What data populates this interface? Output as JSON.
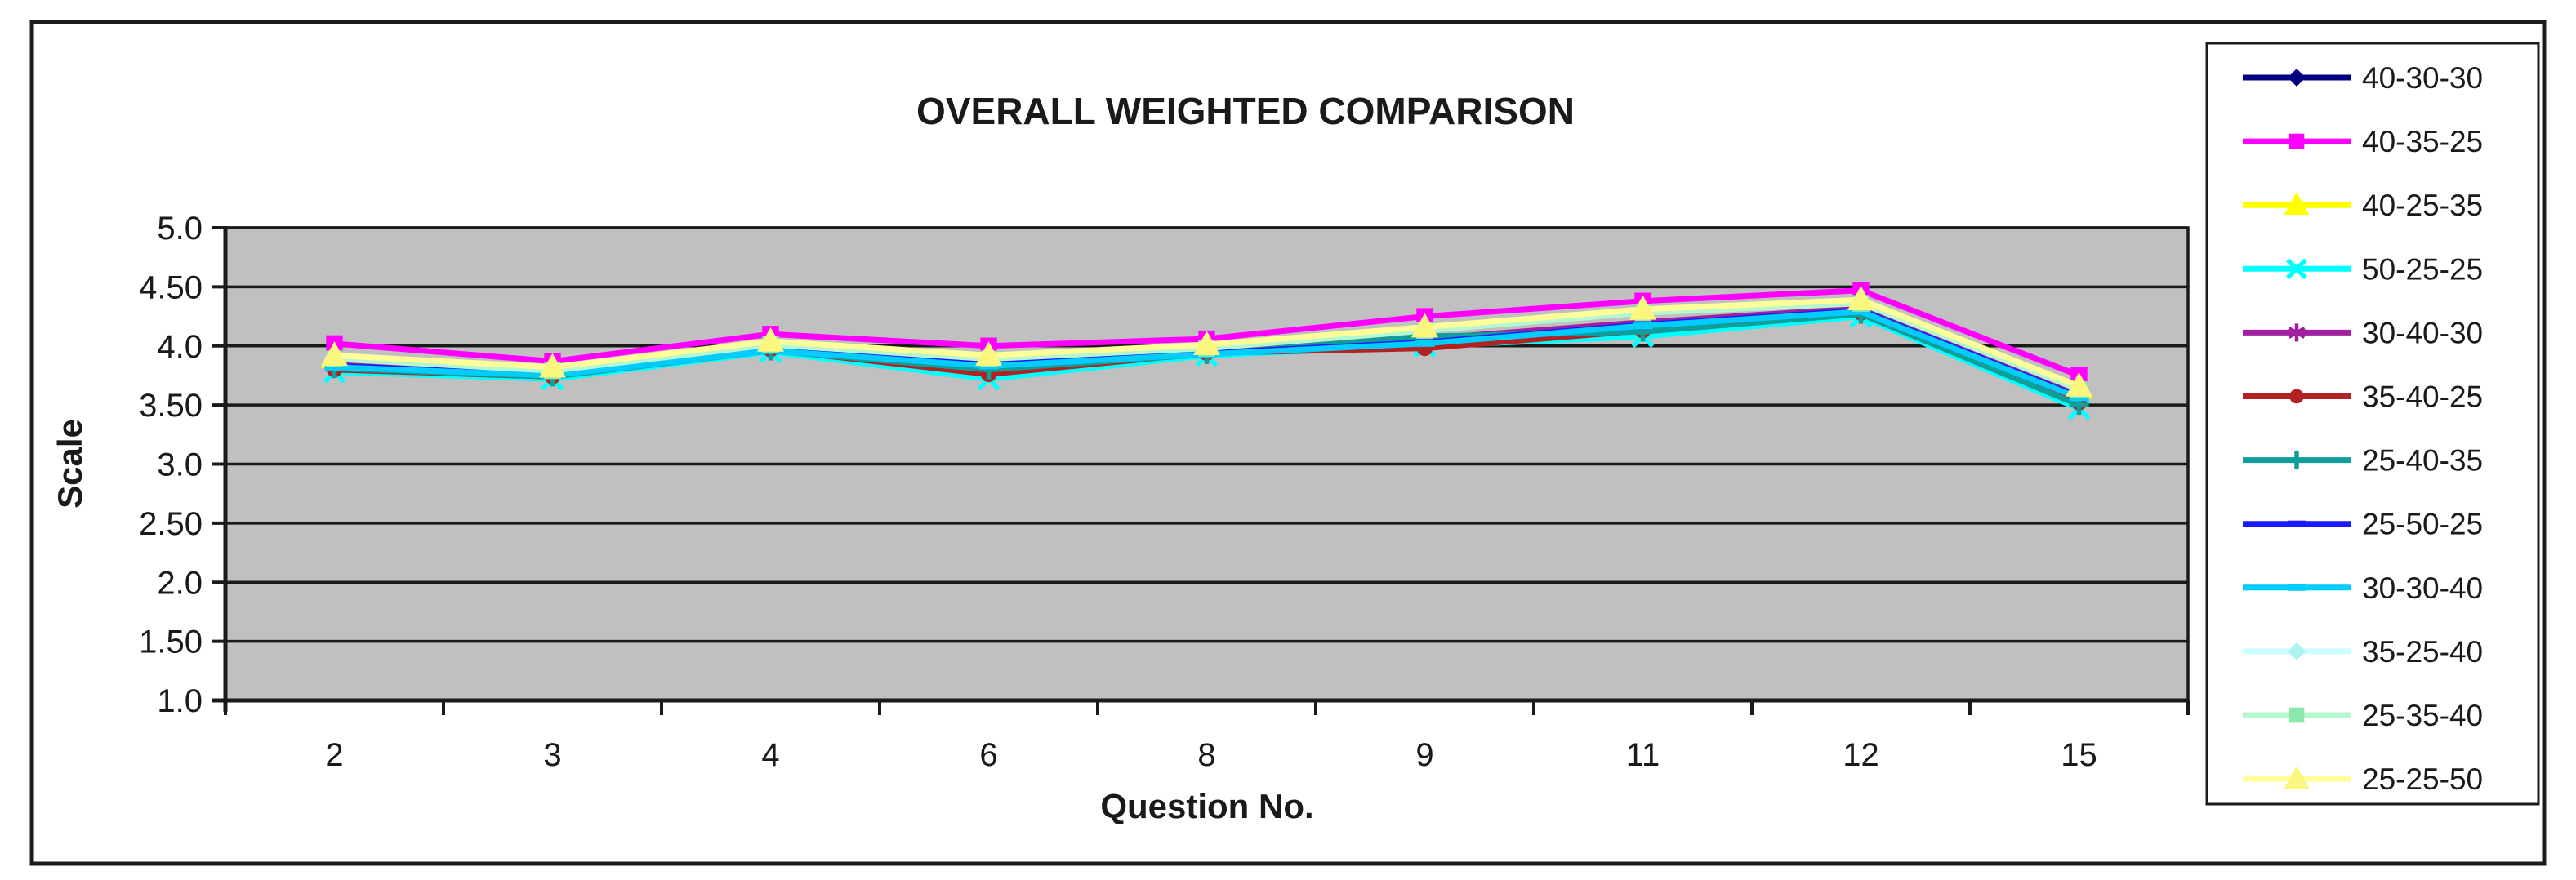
{
  "window": {
    "background": "#ffffff",
    "frame_border_color": "#1a1a1a"
  },
  "chart_data": {
    "type": "line",
    "title": "OVERALL WEIGHTED COMPARISON",
    "xlabel": "Question No.",
    "ylabel": "Scale",
    "categories": [
      "2",
      "3",
      "4",
      "6",
      "8",
      "9",
      "11",
      "12",
      "15"
    ],
    "ylim": [
      1.0,
      5.0
    ],
    "y_tick_step": 0.5,
    "y_tick_labels": [
      "5.0",
      "4.50",
      "4.0",
      "3.50",
      "3.0",
      "2.50",
      "2.0",
      "1.50",
      "1.0"
    ],
    "grid": true,
    "plot_bg": "#c0c0c0",
    "gridline_color": "#1a1a1a",
    "axis_color": "#1a1a1a",
    "legend_position": "right",
    "legend_bg": "#ffffff",
    "legend_border": "#1a1a1a",
    "series": [
      {
        "name": "40-30-30",
        "color": "#000080",
        "marker": "diamond",
        "values": [
          3.84,
          3.77,
          3.99,
          3.85,
          3.95,
          4.05,
          4.19,
          4.31,
          3.58
        ]
      },
      {
        "name": "40-35-25",
        "color": "#FF00FF",
        "marker": "square",
        "values": [
          4.02,
          3.87,
          4.1,
          4.0,
          4.06,
          4.25,
          4.38,
          4.47,
          3.75
        ]
      },
      {
        "name": "40-25-35",
        "color": "#FFFF00",
        "marker": "triangle",
        "values": [
          3.9,
          3.8,
          4.02,
          3.9,
          3.99,
          4.14,
          4.29,
          4.37,
          3.64
        ]
      },
      {
        "name": "50-25-25",
        "color": "#00FFFF",
        "marker": "x",
        "values": [
          3.78,
          3.72,
          3.95,
          3.72,
          3.92,
          4.0,
          4.08,
          4.25,
          3.47
        ]
      },
      {
        "name": "30-40-30",
        "color": "#A020A0",
        "marker": "asterisk",
        "values": [
          3.85,
          3.78,
          3.98,
          3.86,
          3.96,
          4.06,
          4.2,
          4.32,
          3.59
        ]
      },
      {
        "name": "35-40-25",
        "color": "#B22222",
        "marker": "circle",
        "values": [
          3.8,
          3.74,
          3.97,
          3.76,
          3.94,
          3.98,
          4.13,
          4.28,
          3.52
        ]
      },
      {
        "name": "25-40-35",
        "color": "#0F9E99",
        "marker": "plus",
        "values": [
          3.81,
          3.74,
          3.96,
          3.8,
          3.93,
          4.08,
          4.12,
          4.27,
          3.5
        ]
      },
      {
        "name": "25-50-25",
        "color": "#1A1AFF",
        "marker": "dash",
        "values": [
          3.83,
          3.76,
          3.97,
          3.84,
          3.94,
          4.03,
          4.18,
          4.3,
          3.57
        ]
      },
      {
        "name": "30-30-40",
        "color": "#00CCFF",
        "marker": "dash",
        "values": [
          3.82,
          3.75,
          3.96,
          3.83,
          3.93,
          4.02,
          4.17,
          4.29,
          3.56
        ]
      },
      {
        "name": "35-25-40",
        "color": "#CCFFFF",
        "marker": "diamond",
        "marker_color": "#AEF3EF",
        "values": [
          3.91,
          3.81,
          4.03,
          3.91,
          4.0,
          4.15,
          4.3,
          4.38,
          3.65
        ]
      },
      {
        "name": "25-35-40",
        "color": "#B5F7CE",
        "marker": "square",
        "marker_color": "#8BE8AC",
        "values": [
          3.89,
          3.79,
          4.01,
          3.89,
          3.98,
          4.13,
          4.28,
          4.36,
          3.63
        ]
      },
      {
        "name": "25-25-50",
        "color": "#FFFF99",
        "marker": "triangle",
        "marker_color": "#FAF67E",
        "values": [
          3.92,
          3.82,
          4.04,
          3.92,
          4.01,
          4.16,
          4.31,
          4.39,
          3.66
        ]
      }
    ]
  }
}
